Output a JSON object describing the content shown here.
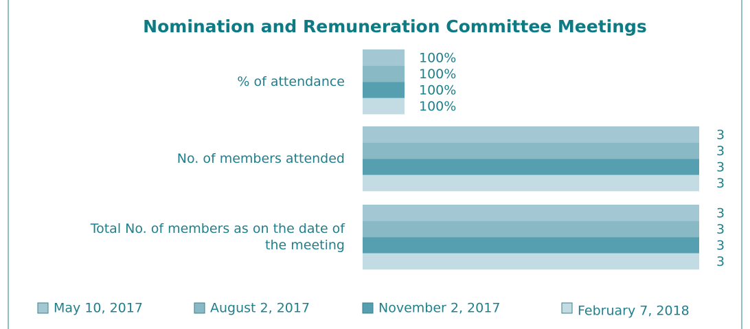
{
  "chart_data": {
    "type": "barh",
    "title": "Nomination and Remuneration Committee Meetings",
    "categories": [
      "% of attendance",
      "No. of members attended",
      "Total No. of members as on the date of the meeting"
    ],
    "series": [
      {
        "name": "May 10, 2017",
        "color": "#a3c8d3",
        "values": [
          100,
          3,
          3
        ],
        "value_labels": [
          "100%",
          "3",
          "3"
        ]
      },
      {
        "name": "August 2, 2017",
        "color": "#8ab9c6",
        "values": [
          100,
          3,
          3
        ],
        "value_labels": [
          "100%",
          "3",
          "3"
        ]
      },
      {
        "name": "November 2, 2017",
        "color": "#559fb1",
        "values": [
          100,
          3,
          3
        ],
        "value_labels": [
          "100%",
          "3",
          "3"
        ]
      },
      {
        "name": "February 7, 2018",
        "color": "#c3dbe2",
        "values": [
          100,
          3,
          3
        ],
        "value_labels": [
          "100%",
          "3",
          "3"
        ]
      }
    ],
    "legend": "bottom"
  }
}
